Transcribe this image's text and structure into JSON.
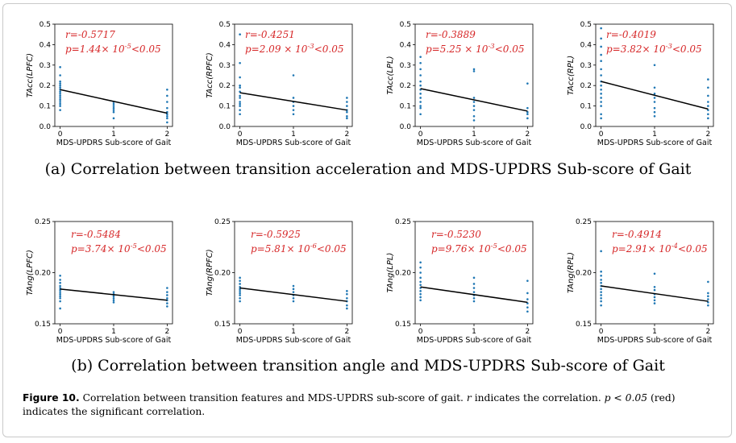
{
  "chart_data": [
    {
      "type": "scatter",
      "panel": "a",
      "ylabel": "TAcc(LPFC)",
      "xlabel": "MDS-UPDRS Sub-score of Gait",
      "ylim": [
        0,
        0.5
      ],
      "yticks": [
        "0.0",
        "0.1",
        "0.2",
        "0.3",
        "0.4",
        "0.5"
      ],
      "xticks": [
        "0",
        "1",
        "2"
      ],
      "r_text": "r=-0.5717",
      "p_text": "p=1.44× 10",
      "p_exp": "-5",
      "p_tail": "<0.05",
      "fit": {
        "x": [
          0,
          2
        ],
        "y": [
          0.18,
          0.065
        ]
      },
      "points": [
        {
          "x": 0,
          "y": [
            0.08,
            0.1,
            0.11,
            0.12,
            0.13,
            0.14,
            0.15,
            0.16,
            0.17,
            0.18,
            0.19,
            0.2,
            0.21,
            0.22,
            0.25,
            0.29
          ]
        },
        {
          "x": 1,
          "y": [
            0.04,
            0.07,
            0.08,
            0.09,
            0.1,
            0.11,
            0.12
          ]
        },
        {
          "x": 2,
          "y": [
            0.02,
            0.04,
            0.05,
            0.06,
            0.07,
            0.09,
            0.12,
            0.15,
            0.18
          ]
        }
      ]
    },
    {
      "type": "scatter",
      "panel": "a",
      "ylabel": "TAcc(RPFC)",
      "xlabel": "MDS-UPDRS Sub-score of Gait",
      "ylim": [
        0,
        0.5
      ],
      "yticks": [
        "0.0",
        "0.1",
        "0.2",
        "0.3",
        "0.4",
        "0.5"
      ],
      "xticks": [
        "0",
        "1",
        "2"
      ],
      "r_text": "r=-0.4251",
      "p_text": "p=2.09 × 10",
      "p_exp": "-3",
      "p_tail": "<0.05",
      "fit": {
        "x": [
          0,
          2
        ],
        "y": [
          0.165,
          0.08
        ]
      },
      "points": [
        {
          "x": 0,
          "y": [
            0.06,
            0.08,
            0.1,
            0.11,
            0.12,
            0.14,
            0.15,
            0.17,
            0.19,
            0.2,
            0.24,
            0.31,
            0.45
          ]
        },
        {
          "x": 1,
          "y": [
            0.06,
            0.08,
            0.1,
            0.12,
            0.14,
            0.25
          ]
        },
        {
          "x": 2,
          "y": [
            0.04,
            0.05,
            0.07,
            0.08,
            0.1,
            0.12,
            0.14
          ]
        }
      ]
    },
    {
      "type": "scatter",
      "panel": "a",
      "ylabel": "TAcc(LPL)",
      "xlabel": "MDS-UPDRS Sub-score of Gait",
      "ylim": [
        0,
        0.5
      ],
      "yticks": [
        "0.0",
        "0.1",
        "0.2",
        "0.3",
        "0.4",
        "0.5"
      ],
      "xticks": [
        "0",
        "1",
        "2"
      ],
      "r_text": "r=-0.3889",
      "p_text": "p=5.25 × 10",
      "p_exp": "-3",
      "p_tail": "<0.05",
      "fit": {
        "x": [
          0,
          2
        ],
        "y": [
          0.185,
          0.075
        ]
      },
      "points": [
        {
          "x": 0,
          "y": [
            0.06,
            0.09,
            0.1,
            0.12,
            0.14,
            0.16,
            0.18,
            0.2,
            0.22,
            0.25,
            0.28,
            0.31,
            0.34
          ]
        },
        {
          "x": 1,
          "y": [
            0.03,
            0.05,
            0.08,
            0.1,
            0.12,
            0.14,
            0.27,
            0.28
          ]
        },
        {
          "x": 2,
          "y": [
            0.04,
            0.06,
            0.07,
            0.09,
            0.21
          ]
        }
      ]
    },
    {
      "type": "scatter",
      "panel": "a",
      "ylabel": "TAcc(RPL)",
      "xlabel": "MDS-UPDRS Sub-score of Gait",
      "ylim": [
        0,
        0.5
      ],
      "yticks": [
        "0.0",
        "0.1",
        "0.2",
        "0.3",
        "0.4",
        "0.5"
      ],
      "xticks": [
        "0",
        "1",
        "2"
      ],
      "r_text": "r=-0.4019",
      "p_text": "p=3.82× 10",
      "p_exp": "-3",
      "p_tail": "<0.05",
      "fit": {
        "x": [
          0,
          2
        ],
        "y": [
          0.22,
          0.085
        ]
      },
      "points": [
        {
          "x": 0,
          "y": [
            0.04,
            0.06,
            0.1,
            0.12,
            0.14,
            0.16,
            0.18,
            0.2,
            0.22,
            0.25,
            0.28,
            0.32,
            0.35,
            0.39,
            0.43,
            0.48
          ]
        },
        {
          "x": 1,
          "y": [
            0.05,
            0.07,
            0.09,
            0.12,
            0.14,
            0.16,
            0.19,
            0.3
          ]
        },
        {
          "x": 2,
          "y": [
            0.04,
            0.06,
            0.08,
            0.1,
            0.12,
            0.15,
            0.19,
            0.23
          ]
        }
      ]
    },
    {
      "type": "scatter",
      "panel": "b",
      "ylabel": "TAng(LPFC)",
      "xlabel": "MDS-UPDRS Sub-score of Gait",
      "ylim": [
        0.15,
        0.25
      ],
      "yticks": [
        "0.15",
        "0.20",
        "0.25"
      ],
      "xticks": [
        "0",
        "1",
        "2"
      ],
      "r_text": "r=-0.5484",
      "p_text": "p=3.74× 10",
      "p_exp": "-5",
      "p_tail": "<0.05",
      "fit": {
        "x": [
          0,
          2
        ],
        "y": [
          0.184,
          0.173
        ]
      },
      "points": [
        {
          "x": 0,
          "y": [
            0.165,
            0.172,
            0.175,
            0.177,
            0.179,
            0.181,
            0.183,
            0.185,
            0.187,
            0.19,
            0.193,
            0.197
          ]
        },
        {
          "x": 1,
          "y": [
            0.171,
            0.173,
            0.175,
            0.177,
            0.179,
            0.181
          ]
        },
        {
          "x": 2,
          "y": [
            0.167,
            0.17,
            0.173,
            0.175,
            0.178,
            0.181,
            0.185
          ]
        }
      ]
    },
    {
      "type": "scatter",
      "panel": "b",
      "ylabel": "TAng(RPFC)",
      "xlabel": "MDS-UPDRS Sub-score of Gait",
      "ylim": [
        0.15,
        0.25
      ],
      "yticks": [
        "0.15",
        "0.20",
        "0.25"
      ],
      "xticks": [
        "0",
        "1",
        "2"
      ],
      "r_text": "r=-0.5925",
      "p_text": "p=5.81× 10",
      "p_exp": "-6",
      "p_tail": "<0.05",
      "fit": {
        "x": [
          0,
          2
        ],
        "y": [
          0.185,
          0.172
        ]
      },
      "points": [
        {
          "x": 0,
          "y": [
            0.172,
            0.175,
            0.178,
            0.18,
            0.182,
            0.184,
            0.186,
            0.189,
            0.192,
            0.195
          ]
        },
        {
          "x": 1,
          "y": [
            0.172,
            0.175,
            0.178,
            0.181,
            0.184,
            0.187
          ]
        },
        {
          "x": 2,
          "y": [
            0.165,
            0.168,
            0.172,
            0.175,
            0.179,
            0.182
          ]
        }
      ]
    },
    {
      "type": "scatter",
      "panel": "b",
      "ylabel": "TAng(LPL)",
      "xlabel": "MDS-UPDRS Sub-score of Gait",
      "ylim": [
        0.15,
        0.25
      ],
      "yticks": [
        "0.15",
        "0.20",
        "0.25"
      ],
      "xticks": [
        "0",
        "1",
        "2"
      ],
      "r_text": "r=-0.5230",
      "p_text": "p=9.76× 10",
      "p_exp": "-5",
      "p_tail": "<0.05",
      "fit": {
        "x": [
          0,
          2
        ],
        "y": [
          0.186,
          0.171
        ]
      },
      "points": [
        {
          "x": 0,
          "y": [
            0.173,
            0.176,
            0.179,
            0.182,
            0.185,
            0.188,
            0.191,
            0.195,
            0.2,
            0.205,
            0.21
          ]
        },
        {
          "x": 1,
          "y": [
            0.172,
            0.175,
            0.178,
            0.181,
            0.185,
            0.189,
            0.195
          ]
        },
        {
          "x": 2,
          "y": [
            0.162,
            0.166,
            0.17,
            0.174,
            0.18,
            0.192
          ]
        }
      ]
    },
    {
      "type": "scatter",
      "panel": "b",
      "ylabel": "TAng(RPL)",
      "xlabel": "MDS-UPDRS Sub-score of Gait",
      "ylim": [
        0.15,
        0.25
      ],
      "yticks": [
        "0.15",
        "0.20",
        "0.25"
      ],
      "xticks": [
        "0",
        "1",
        "2"
      ],
      "r_text": "r=-0.4914",
      "p_text": "p=2.91× 10",
      "p_exp": "-4",
      "p_tail": "<0.05",
      "fit": {
        "x": [
          0,
          2
        ],
        "y": [
          0.187,
          0.172
        ]
      },
      "points": [
        {
          "x": 0,
          "y": [
            0.168,
            0.172,
            0.175,
            0.178,
            0.181,
            0.184,
            0.187,
            0.19,
            0.193,
            0.197,
            0.201,
            0.221
          ]
        },
        {
          "x": 1,
          "y": [
            0.17,
            0.173,
            0.176,
            0.179,
            0.183,
            0.186,
            0.199
          ]
        },
        {
          "x": 2,
          "y": [
            0.168,
            0.171,
            0.174,
            0.177,
            0.18,
            0.191
          ]
        }
      ]
    }
  ],
  "captions": {
    "a": "(a) Correlation between transition acceleration and MDS-UPDRS Sub-score of Gait",
    "b": "(b) Correlation between transition angle and MDS-UPDRS Sub-score of Gait"
  },
  "figure_caption": {
    "label": "Figure 10.",
    "text1": " Correlation between transition features and MDS-UPDRS sub-score of gait. ",
    "r_sym": "r",
    "text2": " indicates the correlation. ",
    "p_expr": "p < 0.05",
    "text3": " (red) indicates the significant correlation."
  },
  "colors": {
    "point": "#1f77b4",
    "fit": "#000000",
    "annot": "#d62728"
  }
}
